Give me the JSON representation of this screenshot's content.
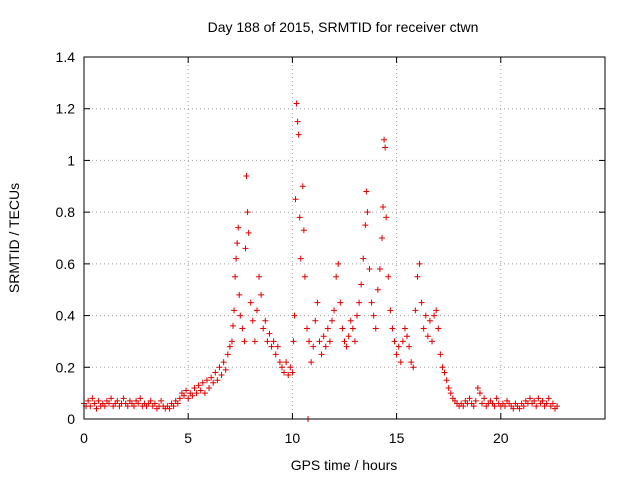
{
  "chart_data": {
    "type": "scatter",
    "title": "Day 188 of 2015, SRMTID for receiver ctwn",
    "xlabel": "GPS time / hours",
    "ylabel": "SRMTID / TECUs",
    "xlim": [
      0,
      25
    ],
    "ylim": [
      0,
      1.4
    ],
    "xticks": [
      0,
      5,
      10,
      15,
      20
    ],
    "xtick_labels": [
      "0",
      "5",
      "10",
      "15",
      "20"
    ],
    "yticks": [
      0,
      0.2,
      0.4,
      0.6,
      0.8,
      1.0,
      1.2,
      1.4
    ],
    "ytick_labels": [
      "0",
      "0.2",
      "0.4",
      "0.6",
      "0.8",
      "1",
      "1.2",
      "1.4"
    ],
    "grid": true,
    "marker": "plus",
    "color": "#e00000",
    "series": [
      {
        "name": "SRMTID",
        "points": [
          [
            0.0,
            0.06
          ],
          [
            0.1,
            0.05
          ],
          [
            0.2,
            0.07
          ],
          [
            0.3,
            0.05
          ],
          [
            0.4,
            0.08
          ],
          [
            0.5,
            0.06
          ],
          [
            0.6,
            0.04
          ],
          [
            0.7,
            0.07
          ],
          [
            0.8,
            0.05
          ],
          [
            0.9,
            0.06
          ],
          [
            1.0,
            0.05
          ],
          [
            1.1,
            0.07
          ],
          [
            1.2,
            0.06
          ],
          [
            1.3,
            0.08
          ],
          [
            1.4,
            0.05
          ],
          [
            1.5,
            0.06
          ],
          [
            1.6,
            0.07
          ],
          [
            1.7,
            0.05
          ],
          [
            1.8,
            0.06
          ],
          [
            1.9,
            0.08
          ],
          [
            2.0,
            0.06
          ],
          [
            2.1,
            0.05
          ],
          [
            2.2,
            0.07
          ],
          [
            2.3,
            0.06
          ],
          [
            2.4,
            0.05
          ],
          [
            2.5,
            0.07
          ],
          [
            2.6,
            0.06
          ],
          [
            2.7,
            0.08
          ],
          [
            2.8,
            0.05
          ],
          [
            2.9,
            0.06
          ],
          [
            3.0,
            0.05
          ],
          [
            3.1,
            0.06
          ],
          [
            3.2,
            0.07
          ],
          [
            3.3,
            0.05
          ],
          [
            3.4,
            0.06
          ],
          [
            3.5,
            0.04
          ],
          [
            3.6,
            0.05
          ],
          [
            3.7,
            0.07
          ],
          [
            3.8,
            0.05
          ],
          [
            3.9,
            0.04
          ],
          [
            4.0,
            0.05
          ],
          [
            4.1,
            0.04
          ],
          [
            4.2,
            0.06
          ],
          [
            4.3,
            0.05
          ],
          [
            4.4,
            0.07
          ],
          [
            4.5,
            0.06
          ],
          [
            4.6,
            0.08
          ],
          [
            4.7,
            0.1
          ],
          [
            4.8,
            0.09
          ],
          [
            4.9,
            0.11
          ],
          [
            5.0,
            0.08
          ],
          [
            5.1,
            0.1
          ],
          [
            5.2,
            0.09
          ],
          [
            5.3,
            0.12
          ],
          [
            5.4,
            0.1
          ],
          [
            5.5,
            0.13
          ],
          [
            5.6,
            0.11
          ],
          [
            5.7,
            0.14
          ],
          [
            5.8,
            0.1
          ],
          [
            5.9,
            0.15
          ],
          [
            6.0,
            0.12
          ],
          [
            6.1,
            0.16
          ],
          [
            6.2,
            0.14
          ],
          [
            6.3,
            0.18
          ],
          [
            6.4,
            0.15
          ],
          [
            6.5,
            0.2
          ],
          [
            6.6,
            0.17
          ],
          [
            6.7,
            0.22
          ],
          [
            6.8,
            0.19
          ],
          [
            6.9,
            0.25
          ],
          [
            7.0,
            0.28
          ],
          [
            7.1,
            0.3
          ],
          [
            7.15,
            0.36
          ],
          [
            7.2,
            0.42
          ],
          [
            7.25,
            0.55
          ],
          [
            7.3,
            0.62
          ],
          [
            7.35,
            0.68
          ],
          [
            7.4,
            0.74
          ],
          [
            7.45,
            0.48
          ],
          [
            7.5,
            0.4
          ],
          [
            7.6,
            0.35
          ],
          [
            7.7,
            0.3
          ],
          [
            7.75,
            0.66
          ],
          [
            7.8,
            0.94
          ],
          [
            7.85,
            0.8
          ],
          [
            7.9,
            0.72
          ],
          [
            8.0,
            0.45
          ],
          [
            8.1,
            0.38
          ],
          [
            8.2,
            0.3
          ],
          [
            8.3,
            0.42
          ],
          [
            8.4,
            0.55
          ],
          [
            8.5,
            0.48
          ],
          [
            8.6,
            0.35
          ],
          [
            8.7,
            0.38
          ],
          [
            8.8,
            0.3
          ],
          [
            8.9,
            0.33
          ],
          [
            9.0,
            0.28
          ],
          [
            9.1,
            0.3
          ],
          [
            9.2,
            0.25
          ],
          [
            9.3,
            0.28
          ],
          [
            9.4,
            0.22
          ],
          [
            9.5,
            0.2
          ],
          [
            9.6,
            0.18
          ],
          [
            9.7,
            0.22
          ],
          [
            9.8,
            0.17
          ],
          [
            9.9,
            0.2
          ],
          [
            10.0,
            0.18
          ],
          [
            10.05,
            0.3
          ],
          [
            10.1,
            0.4
          ],
          [
            10.15,
            0.85
          ],
          [
            10.2,
            1.22
          ],
          [
            10.25,
            1.15
          ],
          [
            10.3,
            1.1
          ],
          [
            10.35,
            0.78
          ],
          [
            10.4,
            0.62
          ],
          [
            10.5,
            0.9
          ],
          [
            10.55,
            0.73
          ],
          [
            10.6,
            0.55
          ],
          [
            10.7,
            0.35
          ],
          [
            10.75,
            0.0
          ],
          [
            10.8,
            0.3
          ],
          [
            10.9,
            0.22
          ],
          [
            11.0,
            0.28
          ],
          [
            11.1,
            0.38
          ],
          [
            11.2,
            0.45
          ],
          [
            11.3,
            0.3
          ],
          [
            11.4,
            0.25
          ],
          [
            11.5,
            0.32
          ],
          [
            11.6,
            0.28
          ],
          [
            11.7,
            0.35
          ],
          [
            11.8,
            0.3
          ],
          [
            11.9,
            0.38
          ],
          [
            12.0,
            0.42
          ],
          [
            12.1,
            0.55
          ],
          [
            12.2,
            0.6
          ],
          [
            12.3,
            0.45
          ],
          [
            12.4,
            0.35
          ],
          [
            12.5,
            0.3
          ],
          [
            12.6,
            0.28
          ],
          [
            12.7,
            0.32
          ],
          [
            12.8,
            0.38
          ],
          [
            12.9,
            0.35
          ],
          [
            13.0,
            0.3
          ],
          [
            13.1,
            0.4
          ],
          [
            13.2,
            0.45
          ],
          [
            13.3,
            0.52
          ],
          [
            13.4,
            0.62
          ],
          [
            13.5,
            0.75
          ],
          [
            13.55,
            0.88
          ],
          [
            13.6,
            0.8
          ],
          [
            13.7,
            0.58
          ],
          [
            13.8,
            0.45
          ],
          [
            13.9,
            0.4
          ],
          [
            14.0,
            0.35
          ],
          [
            14.1,
            0.5
          ],
          [
            14.2,
            0.58
          ],
          [
            14.3,
            0.7
          ],
          [
            14.35,
            0.82
          ],
          [
            14.4,
            1.08
          ],
          [
            14.45,
            1.05
          ],
          [
            14.5,
            0.78
          ],
          [
            14.6,
            0.55
          ],
          [
            14.7,
            0.42
          ],
          [
            14.8,
            0.35
          ],
          [
            14.9,
            0.3
          ],
          [
            15.0,
            0.25
          ],
          [
            15.1,
            0.28
          ],
          [
            15.2,
            0.22
          ],
          [
            15.3,
            0.3
          ],
          [
            15.4,
            0.35
          ],
          [
            15.5,
            0.32
          ],
          [
            15.6,
            0.28
          ],
          [
            15.7,
            0.22
          ],
          [
            15.8,
            0.2
          ],
          [
            15.9,
            0.42
          ],
          [
            16.0,
            0.55
          ],
          [
            16.1,
            0.6
          ],
          [
            16.2,
            0.45
          ],
          [
            16.3,
            0.35
          ],
          [
            16.4,
            0.4
          ],
          [
            16.5,
            0.32
          ],
          [
            16.6,
            0.38
          ],
          [
            16.7,
            0.3
          ],
          [
            16.8,
            0.4
          ],
          [
            16.9,
            0.42
          ],
          [
            17.0,
            0.35
          ],
          [
            17.1,
            0.25
          ],
          [
            17.2,
            0.2
          ],
          [
            17.3,
            0.18
          ],
          [
            17.4,
            0.15
          ],
          [
            17.5,
            0.12
          ],
          [
            17.6,
            0.1
          ],
          [
            17.7,
            0.08
          ],
          [
            17.8,
            0.07
          ],
          [
            17.9,
            0.06
          ],
          [
            18.0,
            0.05
          ],
          [
            18.1,
            0.06
          ],
          [
            18.2,
            0.05
          ],
          [
            18.3,
            0.07
          ],
          [
            18.4,
            0.06
          ],
          [
            18.5,
            0.08
          ],
          [
            18.6,
            0.06
          ],
          [
            18.7,
            0.05
          ],
          [
            18.8,
            0.07
          ],
          [
            18.9,
            0.12
          ],
          [
            19.0,
            0.1
          ],
          [
            19.1,
            0.06
          ],
          [
            19.2,
            0.08
          ],
          [
            19.3,
            0.05
          ],
          [
            19.4,
            0.06
          ],
          [
            19.5,
            0.07
          ],
          [
            19.6,
            0.06
          ],
          [
            19.7,
            0.05
          ],
          [
            19.8,
            0.08
          ],
          [
            19.9,
            0.06
          ],
          [
            20.0,
            0.05
          ],
          [
            20.1,
            0.06
          ],
          [
            20.2,
            0.05
          ],
          [
            20.3,
            0.07
          ],
          [
            20.4,
            0.06
          ],
          [
            20.5,
            0.05
          ],
          [
            20.6,
            0.04
          ],
          [
            20.7,
            0.06
          ],
          [
            20.8,
            0.05
          ],
          [
            20.9,
            0.04
          ],
          [
            21.0,
            0.06
          ],
          [
            21.1,
            0.05
          ],
          [
            21.2,
            0.07
          ],
          [
            21.3,
            0.06
          ],
          [
            21.4,
            0.08
          ],
          [
            21.5,
            0.06
          ],
          [
            21.6,
            0.07
          ],
          [
            21.7,
            0.05
          ],
          [
            21.8,
            0.08
          ],
          [
            21.9,
            0.06
          ],
          [
            22.0,
            0.07
          ],
          [
            22.1,
            0.05
          ],
          [
            22.2,
            0.06
          ],
          [
            22.3,
            0.08
          ],
          [
            22.4,
            0.05
          ],
          [
            22.5,
            0.06
          ],
          [
            22.6,
            0.04
          ],
          [
            22.7,
            0.05
          ]
        ]
      }
    ]
  }
}
